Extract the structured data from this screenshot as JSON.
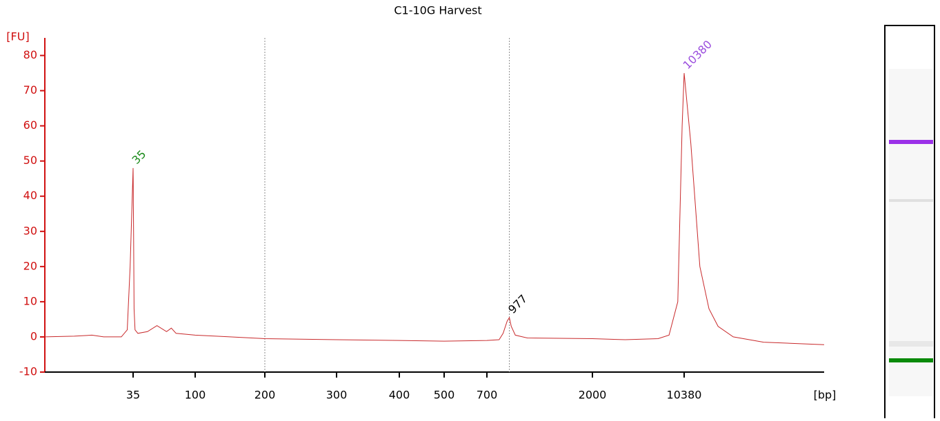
{
  "chart_data": {
    "type": "line",
    "title": "C1-10G Harvest",
    "y_label": "[FU]",
    "x_label": "[bp]",
    "series": [
      {
        "color": "#c8282a",
        "x": [
          20,
          25,
          28,
          30,
          33,
          34,
          34.5,
          35,
          35.5,
          36,
          37,
          40,
          50,
          60,
          70,
          75,
          80,
          100,
          150,
          200,
          300,
          400,
          500,
          700,
          850,
          900,
          950,
          977,
          1000,
          1050,
          1200,
          2000,
          5000,
          8000,
          9000,
          9800,
          10200,
          10380,
          10600,
          10900,
          11200,
          11500,
          12000,
          13000,
          15000
        ],
        "values": [
          0,
          0.2,
          0.5,
          0,
          0,
          2,
          20,
          48,
          30,
          8,
          2,
          1,
          1.5,
          3.2,
          1.5,
          2.5,
          1,
          0.5,
          0,
          -0.5,
          -0.8,
          -1,
          -1.2,
          -1,
          -0.8,
          1,
          4.5,
          5.5,
          3,
          0.5,
          -0.3,
          -0.5,
          -0.8,
          -0.5,
          0.5,
          10,
          60,
          75,
          55,
          20,
          8,
          3,
          0,
          -1.5,
          -2.2
        ]
      }
    ],
    "peaks": [
      {
        "label": "35",
        "x": 35,
        "y": 48,
        "color": "#1a8a1a"
      },
      {
        "label": "977",
        "x": 977,
        "y": 5.5,
        "color": "#000000"
      },
      {
        "label": "10380",
        "x": 10380,
        "y": 75,
        "color": "#9b4dde"
      }
    ],
    "vlines": [
      200,
      977
    ],
    "xlim": [
      20,
      15000
    ],
    "xticks": [
      35,
      100,
      200,
      300,
      400,
      500,
      700,
      2000,
      10380
    ],
    "ylim": [
      -10,
      85
    ],
    "yticks": [
      -10,
      0,
      10,
      20,
      30,
      40,
      50,
      60,
      70,
      80
    ]
  }
}
